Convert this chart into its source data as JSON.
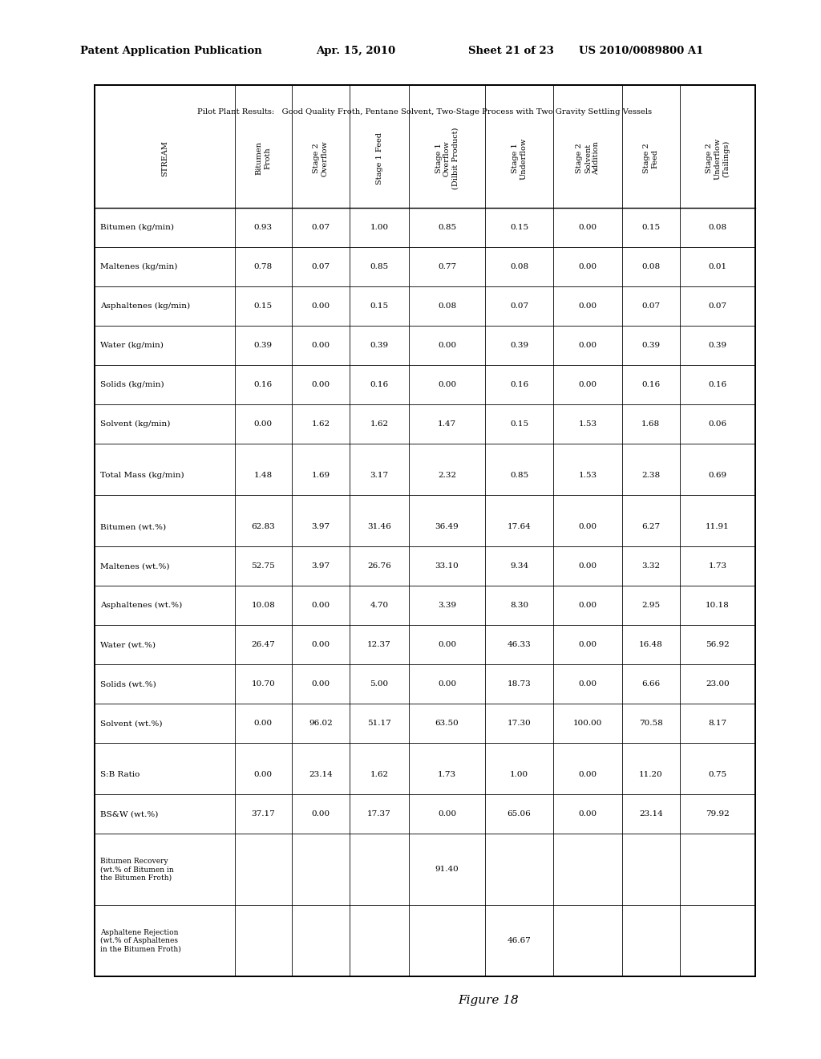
{
  "header_line1": "Patent Application Publication",
  "header_date": "Apr. 15, 2010",
  "header_sheet": "Sheet 21 of 23",
  "header_patent": "US 2010/0089800 A1",
  "table_title": "Pilot Plant Results:   Good Quality Froth, Pentane Solvent, Two-Stage Process with Two Gravity Settling Vessels",
  "figure_label": "Figure 18",
  "col_header_texts": [
    "STREAM",
    "Bitumen\nFroth",
    "Stage 2\nOverflow",
    "Stage 1 Feed",
    "Stage 1\nOverflow\n(Dilbit Product)",
    "Stage 1\nUnderflow",
    "Stage 2\nSolvent\nAddition",
    "Stage 2\nFeed",
    "Stage 2\nUnderflow\n(Tailings)"
  ],
  "data": [
    [
      "Bitumen (kg/min)",
      "0.93",
      "0.07",
      "1.00",
      "0.85",
      "0.15",
      "0.00",
      "0.15",
      "0.08"
    ],
    [
      "Maltenes (kg/min)",
      "0.78",
      "0.07",
      "0.85",
      "0.77",
      "0.08",
      "0.00",
      "0.08",
      "0.01"
    ],
    [
      "Asphaltenes (kg/min)",
      "0.15",
      "0.00",
      "0.15",
      "0.08",
      "0.07",
      "0.00",
      "0.07",
      "0.07"
    ],
    [
      "Water (kg/min)",
      "0.39",
      "0.00",
      "0.39",
      "0.00",
      "0.39",
      "0.00",
      "0.39",
      "0.39"
    ],
    [
      "Solids (kg/min)",
      "0.16",
      "0.00",
      "0.16",
      "0.00",
      "0.16",
      "0.00",
      "0.16",
      "0.16"
    ],
    [
      "Solvent (kg/min)",
      "0.00",
      "1.62",
      "1.62",
      "1.47",
      "0.15",
      "1.53",
      "1.68",
      "0.06"
    ],
    [
      "EMPTY",
      "",
      "",
      "",
      "",
      "",
      "",
      "",
      ""
    ],
    [
      "Total Mass (kg/min)",
      "1.48",
      "1.69",
      "3.17",
      "2.32",
      "0.85",
      "1.53",
      "2.38",
      "0.69"
    ],
    [
      "EMPTY",
      "",
      "",
      "",
      "",
      "",
      "",
      "",
      ""
    ],
    [
      "Bitumen (wt.%)",
      "62.83",
      "3.97",
      "31.46",
      "36.49",
      "17.64",
      "0.00",
      "6.27",
      "11.91"
    ],
    [
      "Maltenes (wt.%)",
      "52.75",
      "3.97",
      "26.76",
      "33.10",
      "9.34",
      "0.00",
      "3.32",
      "1.73"
    ],
    [
      "Asphaltenes (wt.%)",
      "10.08",
      "0.00",
      "4.70",
      "3.39",
      "8.30",
      "0.00",
      "2.95",
      "10.18"
    ],
    [
      "Water (wt.%)",
      "26.47",
      "0.00",
      "12.37",
      "0.00",
      "46.33",
      "0.00",
      "16.48",
      "56.92"
    ],
    [
      "Solids (wt.%)",
      "10.70",
      "0.00",
      "5.00",
      "0.00",
      "18.73",
      "0.00",
      "6.66",
      "23.00"
    ],
    [
      "Solvent (wt.%)",
      "0.00",
      "96.02",
      "51.17",
      "63.50",
      "17.30",
      "100.00",
      "70.58",
      "8.17"
    ],
    [
      "EMPTY",
      "",
      "",
      "",
      "",
      "",
      "",
      "",
      ""
    ],
    [
      "S:B Ratio",
      "0.00",
      "23.14",
      "1.62",
      "1.73",
      "1.00",
      "0.00",
      "11.20",
      "0.75"
    ],
    [
      "BS&W (wt.%)",
      "37.17",
      "0.00",
      "17.37",
      "0.00",
      "65.06",
      "0.00",
      "23.14",
      "79.92"
    ],
    [
      "Bitumen Recovery\n(wt.% of Bitumen in\nthe Bitumen Froth)",
      "",
      "",
      "",
      "91.40",
      "",
      "",
      "",
      ""
    ],
    [
      "Asphaltene Rejection\n(wt.% of Asphaltenes\nin the Bitumen Froth)",
      "",
      "",
      "",
      "",
      "46.67",
      "",
      "",
      ""
    ]
  ],
  "bg_color": "#ffffff",
  "text_color": "#000000"
}
